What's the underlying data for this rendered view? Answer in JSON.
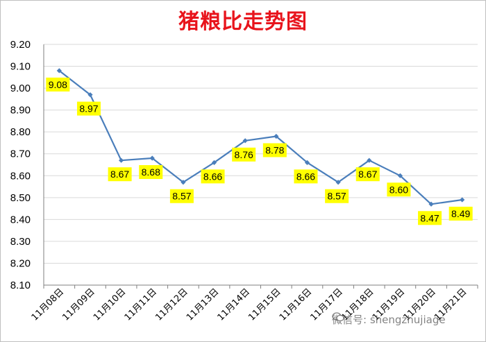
{
  "chart_data": {
    "type": "line",
    "title": "猪粮比走势图",
    "categories": [
      "11月08日",
      "11月09日",
      "11月10日",
      "11月11日",
      "11月12日",
      "11月13日",
      "11月14日",
      "11月15日",
      "11月16日",
      "11月17日",
      "11月18日",
      "11月19日",
      "11月20日",
      "11月21日"
    ],
    "series": [
      {
        "values": [
          9.08,
          8.97,
          8.67,
          8.68,
          8.57,
          8.66,
          8.76,
          8.78,
          8.66,
          8.57,
          8.67,
          8.6,
          8.47,
          8.49
        ]
      }
    ],
    "value_labels": [
      "9.08",
      "8.97",
      "8.67",
      "8.68",
      "8.57",
      "8.66",
      "8.76",
      "8.78",
      "8.66",
      "8.57",
      "8.67",
      "8.60",
      "8.47",
      "8.49"
    ],
    "yticks": [
      "8.10",
      "8.20",
      "8.30",
      "8.40",
      "8.50",
      "8.60",
      "8.70",
      "8.80",
      "8.90",
      "9.00",
      "9.10",
      "9.20"
    ],
    "ylim": [
      8.1,
      9.2
    ],
    "grid": "horizontal",
    "legend": "none",
    "xlabel": "",
    "ylabel": "",
    "colors": {
      "line": "#4a7ebb",
      "title": "#e8141c",
      "label_bg": "#ffff00",
      "grid": "#d9d9d9"
    }
  },
  "watermark": {
    "text": "微信号: shengzhujiage",
    "icon": "wechat-icon"
  }
}
